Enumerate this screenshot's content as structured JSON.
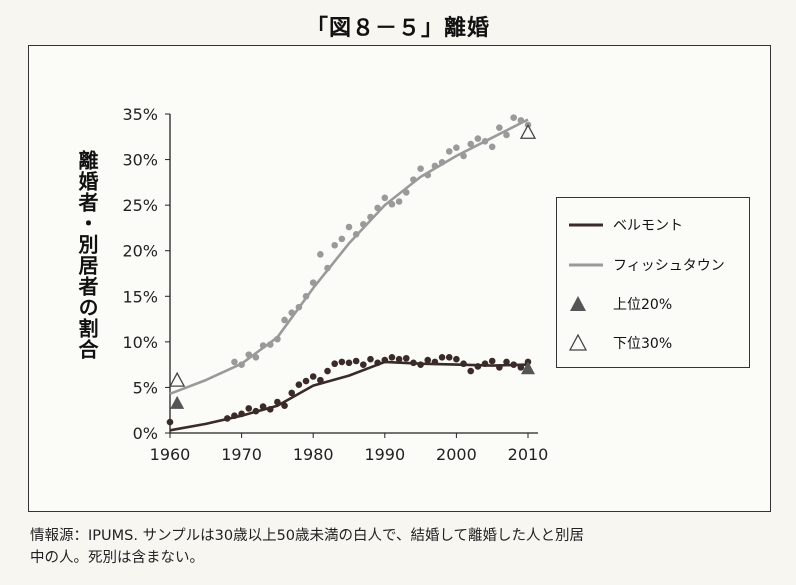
{
  "title": "「図８－５」離婚",
  "chart_data": {
    "type": "line",
    "ylabel": "離婚者・別居者の割合",
    "xlim": [
      1960,
      2010
    ],
    "ylim": [
      0,
      35
    ],
    "x_ticks": [
      "1960",
      "1970",
      "1980",
      "1990",
      "2000",
      "2010"
    ],
    "y_ticks": [
      "0%",
      "5%",
      "10%",
      "15%",
      "20%",
      "25%",
      "30%",
      "35%"
    ],
    "grid": false,
    "legend_position": "right",
    "series": [
      {
        "name": "ベルモント",
        "color": "#3a2a28",
        "trend_x": [
          1960,
          1965,
          1970,
          1975,
          1980,
          1985,
          1990,
          1995,
          2000,
          2005,
          2010
        ],
        "trend_y": [
          0.3,
          1.0,
          1.9,
          3.0,
          5.2,
          6.3,
          7.8,
          7.6,
          7.5,
          7.4,
          7.5
        ],
        "points_x": [
          1960,
          1968,
          1969,
          1970,
          1971,
          1972,
          1973,
          1974,
          1975,
          1976,
          1977,
          1978,
          1979,
          1980,
          1981,
          1982,
          1983,
          1984,
          1985,
          1986,
          1987,
          1988,
          1989,
          1990,
          1991,
          1992,
          1993,
          1994,
          1995,
          1996,
          1997,
          1998,
          1999,
          2000,
          2001,
          2002,
          2003,
          2004,
          2005,
          2006,
          2007,
          2008,
          2009,
          2010
        ],
        "points_y": [
          1.2,
          1.6,
          1.9,
          2.1,
          2.7,
          2.4,
          2.9,
          2.6,
          3.4,
          3.0,
          4.4,
          5.3,
          5.7,
          6.2,
          5.8,
          6.8,
          7.6,
          7.8,
          7.7,
          7.9,
          7.5,
          8.1,
          7.7,
          8.0,
          8.3,
          8.1,
          8.2,
          7.7,
          7.5,
          8.0,
          7.8,
          8.3,
          8.3,
          8.1,
          7.6,
          6.8,
          7.3,
          7.6,
          7.9,
          7.2,
          7.8,
          7.5,
          7.2,
          7.8
        ]
      },
      {
        "name": "フィッシュタウン",
        "color": "#9a9a9a",
        "trend_x": [
          1960,
          1965,
          1970,
          1975,
          1980,
          1985,
          1990,
          1995,
          2000,
          2005,
          2010
        ],
        "trend_y": [
          4.3,
          5.8,
          7.6,
          10.5,
          15.9,
          20.8,
          25.0,
          28.1,
          30.4,
          32.4,
          34.4
        ],
        "points_x": [
          1961,
          1969,
          1970,
          1971,
          1972,
          1973,
          1974,
          1975,
          1976,
          1977,
          1978,
          1979,
          1980,
          1981,
          1982,
          1983,
          1984,
          1985,
          1986,
          1987,
          1988,
          1989,
          1990,
          1991,
          1992,
          1993,
          1994,
          1995,
          1996,
          1997,
          1998,
          1999,
          2000,
          2001,
          2002,
          2003,
          2004,
          2005,
          2006,
          2007,
          2008,
          2009,
          2010
        ],
        "points_y": [
          5.6,
          7.8,
          7.5,
          8.6,
          8.3,
          9.6,
          9.7,
          10.3,
          12.4,
          13.2,
          13.8,
          15.0,
          16.5,
          19.6,
          18.1,
          20.6,
          21.3,
          22.6,
          21.8,
          22.9,
          23.7,
          24.7,
          25.8,
          25.1,
          25.4,
          26.4,
          27.8,
          29.0,
          28.3,
          29.3,
          29.7,
          30.9,
          31.3,
          30.4,
          31.7,
          32.3,
          32.0,
          31.4,
          33.5,
          32.7,
          34.6,
          34.3,
          33.8
        ]
      },
      {
        "name": "上位20%",
        "color": "#555555",
        "marker": "filled-triangle",
        "points_x": [
          1961,
          2010
        ],
        "points_y": [
          3.3,
          7.1
        ]
      },
      {
        "name": "下位30%",
        "color": "#444444",
        "marker": "open-triangle",
        "points_x": [
          1961,
          2010
        ],
        "points_y": [
          5.8,
          33.0
        ]
      }
    ]
  },
  "source_text": {
    "line1": "情報源：IPUMS. サンプルは30歳以上50歳未満の白人で、結婚して離婚した人と別居",
    "line2": "中の人。死別は含まない。"
  }
}
